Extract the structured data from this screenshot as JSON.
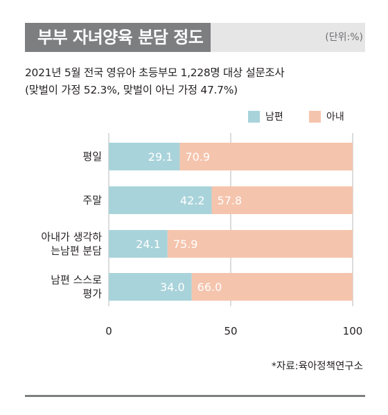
{
  "header": {
    "title": "부부 자녀양육 분담 정도",
    "unit": "(단위:%)"
  },
  "subtitle_line1": "2021년 5월 전국 영유아 초등부모 1,228명 대상 설문조사",
  "subtitle_line2": "(맞벌이 가정 52.3%, 맞벌이 아닌 가정 47.7%)",
  "legend": [
    {
      "name": "남편",
      "color": "#a9d3da"
    },
    {
      "name": "아내",
      "color": "#f5c4ad"
    }
  ],
  "source": "*자료:육아정책연구소",
  "chart_data": {
    "type": "bar",
    "orientation": "horizontal",
    "stacked": true,
    "categories": [
      [
        "평일"
      ],
      [
        "주말"
      ],
      [
        "아내가 생각하",
        "는남편 분담"
      ],
      [
        "남편 스스로",
        "평가"
      ]
    ],
    "series": [
      {
        "name": "남편",
        "values": [
          "29.1",
          "42.2",
          "24.1",
          "34.0"
        ],
        "color": "#a9d3da"
      },
      {
        "name": "아내",
        "values": [
          "70.9",
          "57.8",
          "75.9",
          "66.0"
        ],
        "color": "#f5c4ad"
      }
    ],
    "xlim": [
      0,
      100
    ],
    "xticks": [
      "0",
      "50",
      "100"
    ],
    "grid": true
  }
}
